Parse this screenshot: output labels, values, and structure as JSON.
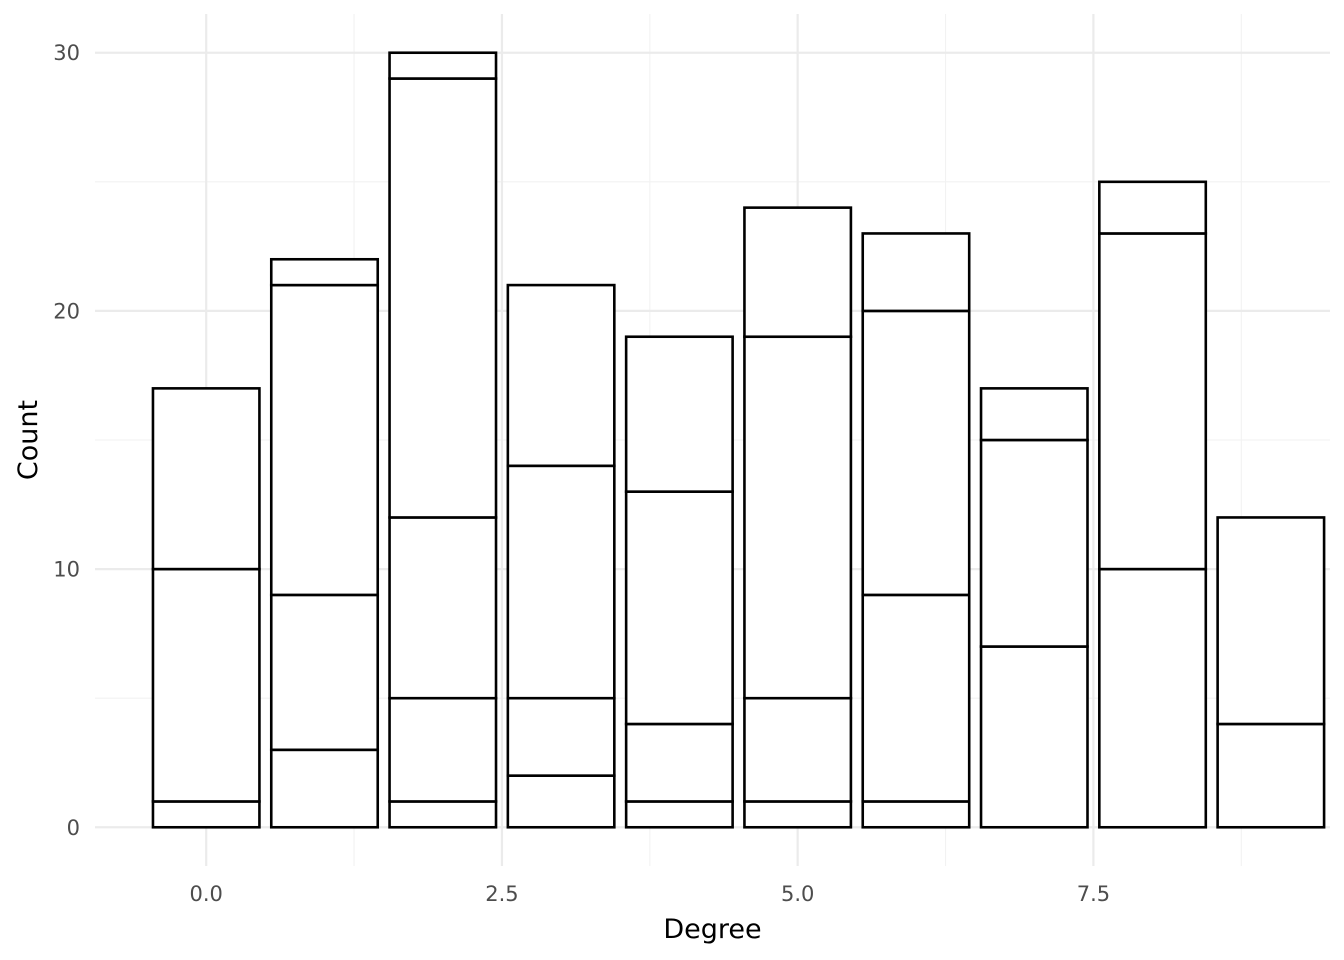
{
  "chart_data": {
    "type": "bar",
    "stacked": true,
    "xlabel": "Degree",
    "ylabel": "Count",
    "x_ticks": [
      "0.0",
      "2.5",
      "5.0",
      "7.5"
    ],
    "x_tick_values": [
      0,
      2.5,
      5,
      7.5
    ],
    "y_ticks": [
      "0",
      "10",
      "20",
      "30"
    ],
    "y_tick_values": [
      0,
      10,
      20,
      30
    ],
    "xlim": [
      -0.94,
      9.5
    ],
    "ylim": [
      -1.5,
      31.5
    ],
    "grid": true,
    "fill_color": "#ffffff",
    "outline_color": "#000000",
    "bars": [
      {
        "x": 0,
        "segments": [
          1,
          9,
          7
        ]
      },
      {
        "x": 1,
        "segments": [
          3,
          6,
          12,
          1
        ]
      },
      {
        "x": 2,
        "segments": [
          1,
          4,
          7,
          17,
          1
        ]
      },
      {
        "x": 3,
        "segments": [
          2,
          3,
          9,
          7
        ]
      },
      {
        "x": 4,
        "segments": [
          1,
          3,
          9,
          6
        ]
      },
      {
        "x": 5,
        "segments": [
          1,
          4,
          14,
          5
        ]
      },
      {
        "x": 6,
        "segments": [
          1,
          8,
          11,
          3
        ]
      },
      {
        "x": 7,
        "segments": [
          7,
          8,
          2
        ]
      },
      {
        "x": 8,
        "segments": [
          10,
          13,
          2
        ]
      },
      {
        "x": 9,
        "segments": [
          4,
          8
        ]
      }
    ],
    "totals": [
      17,
      22,
      30,
      21,
      19,
      24,
      23,
      17,
      25,
      12
    ]
  }
}
